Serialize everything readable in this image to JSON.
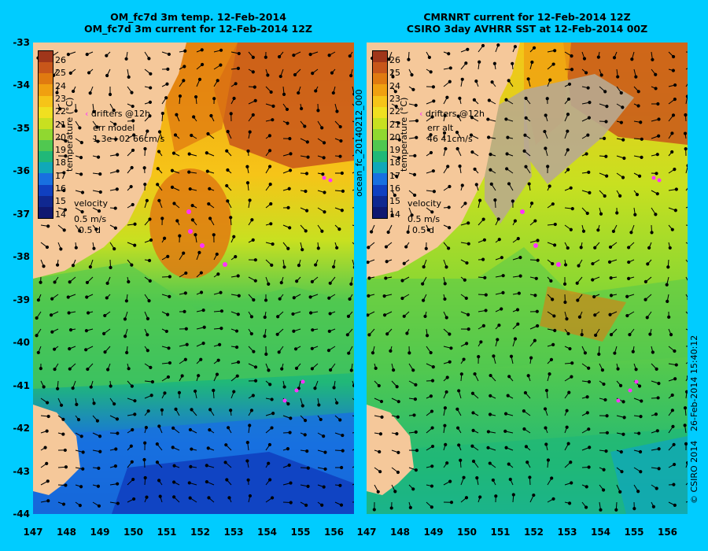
{
  "left_panel": {
    "title_line1": "OM_fc7d 3m temp. 12-Feb-2014",
    "title_line2": "OM_fc7d 3m current for 12-Feb-2014 12Z",
    "legend_title": "temperature (°C)",
    "drifters_label": "drifters @12h",
    "err_label": "err model",
    "err_value": "1.3e+02 66cm/s",
    "velocity_label": "velocity",
    "velocity_scale": "0.5 m/s",
    "velocity_time": "0.5 d"
  },
  "right_panel": {
    "title_line1": "CMRNRT current for 12-Feb-2014 12Z",
    "title_line2": "CSIRO 3day AVHRR SST at 12-Feb-2014 00Z",
    "legend_title": "temperature (°C)",
    "drifters_label": "drifters @12h",
    "err_label": "err alt",
    "err_value": "46 41cm/s",
    "velocity_label": "velocity",
    "velocity_scale": "0.5 m/s",
    "velocity_time": "0.5 d"
  },
  "side_label": "ocean_fc_20140212_000",
  "copyright": "© CSIRO 2014",
  "timestamp": "26-Feb-2014 15:40:12",
  "colorbar_ticks": [
    "26",
    "25",
    "24",
    "23",
    "22",
    "21",
    "20",
    "19",
    "18",
    "17",
    "16",
    "15",
    "14"
  ],
  "colors": {
    "background": "#00ccff",
    "land": "#f5c89a",
    "drifter": "#ff33ff",
    "colorbar": [
      "#a0361a",
      "#c8561a",
      "#e07a10",
      "#f0a010",
      "#f6c418",
      "#f0e020",
      "#c8e020",
      "#90d830",
      "#50c850",
      "#20b878",
      "#10a8b8",
      "#1870e0",
      "#1040c0",
      "#102890",
      "#101870"
    ]
  },
  "y_ticks": [
    "-33",
    "-34",
    "-35",
    "-36",
    "-37",
    "-38",
    "-39",
    "-40",
    "-41",
    "-42",
    "-43",
    "-44"
  ],
  "x_ticks_left": [
    "147",
    "148",
    "149",
    "150",
    "151",
    "152",
    "153",
    "154",
    "155",
    "156"
  ],
  "x_ticks_right": [
    "147",
    "148",
    "149",
    "150",
    "151",
    "152",
    "153",
    "154",
    "155",
    "156"
  ]
}
